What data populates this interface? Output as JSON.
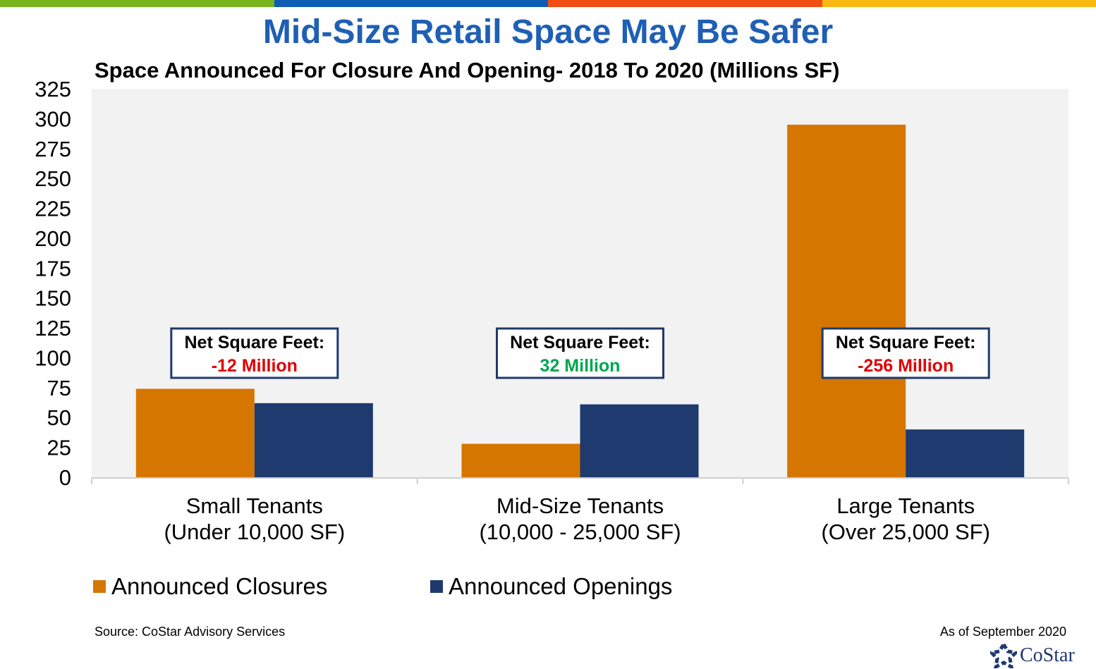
{
  "title": "Mid-Size Retail Space May Be Safer",
  "subtitle": "Space Announced For Closure And Opening- 2018 To 2020 (Millions SF)",
  "colors": {
    "topbar": [
      "#7ab51d",
      "#0f5cb5",
      "#f04e12",
      "#fbb812"
    ],
    "title": "#1f5fb4",
    "closures": "#d57600",
    "openings": "#1f3a6e",
    "negative": "#e00000",
    "positive": "#00a64f",
    "plot_bg": "#f2f2f2"
  },
  "chart_data": {
    "type": "bar",
    "categories": [
      [
        "Small Tenants",
        "(Under 10,000 SF)"
      ],
      [
        "Mid-Size Tenants",
        "(10,000 - 25,000 SF)"
      ],
      [
        "Large Tenants",
        "(Over 25,000 SF)"
      ]
    ],
    "series": [
      {
        "name": "Announced Closures",
        "values": [
          74,
          28,
          295
        ]
      },
      {
        "name": "Announced Openings",
        "values": [
          62,
          61,
          40
        ]
      }
    ],
    "ylim": [
      0,
      325
    ],
    "yticks": [
      0,
      25,
      50,
      75,
      100,
      125,
      150,
      175,
      200,
      225,
      250,
      275,
      300,
      325
    ],
    "grid": false,
    "legend": "bottom-left",
    "annotations": [
      {
        "label": "Net Square Feet:",
        "value": "-12 Million",
        "sign": "negative"
      },
      {
        "label": "Net Square Feet:",
        "value": "32 Million",
        "sign": "positive"
      },
      {
        "label": "Net Square Feet:",
        "value": "-256 Million",
        "sign": "negative"
      }
    ]
  },
  "legend": {
    "closures": "Announced Closures",
    "openings": "Announced Openings"
  },
  "footer": {
    "source": "Source: CoStar Advisory Services",
    "as_of": "As of September 2020",
    "logo_text": "CoStar"
  }
}
